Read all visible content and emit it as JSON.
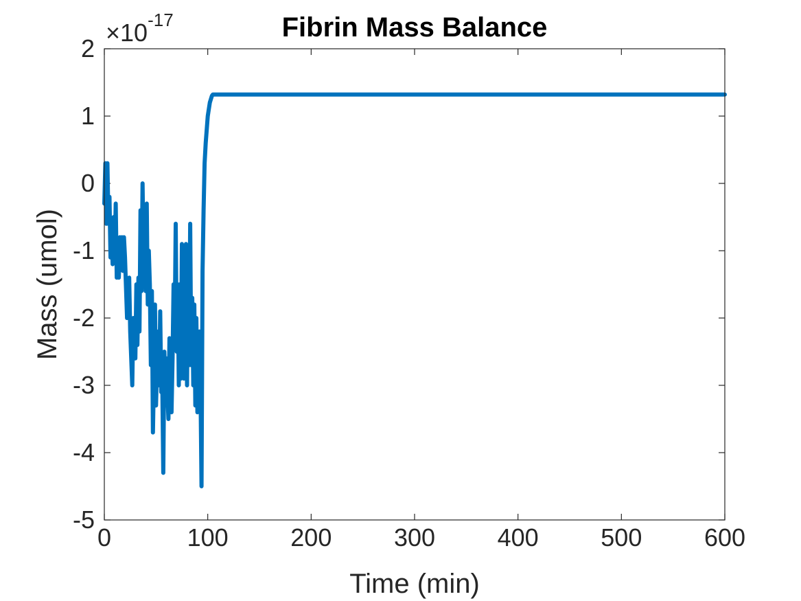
{
  "chart_data": {
    "type": "line",
    "title": "Fibrin Mass Balance",
    "xlabel": "Time (min)",
    "ylabel": "Mass (umol)",
    "exponent_label": {
      "base": "×10",
      "power": "-17"
    },
    "xlim": [
      0,
      600
    ],
    "ylim": [
      -5,
      2
    ],
    "xticks": [
      0,
      100,
      200,
      300,
      400,
      500,
      600
    ],
    "yticks": [
      -5,
      -4,
      -3,
      -2,
      -1,
      0,
      1,
      2
    ],
    "grid": false,
    "line_color": "#0072BD",
    "series": [
      {
        "x": [
          0,
          1,
          2,
          3,
          4,
          5,
          6,
          7,
          8,
          9,
          10,
          11,
          12,
          13,
          14,
          15,
          16,
          17,
          18,
          19,
          20,
          22,
          24,
          25,
          27,
          28,
          30,
          31,
          32,
          33,
          34,
          35,
          36,
          37,
          38,
          39,
          40,
          41,
          42,
          43,
          44,
          45,
          46,
          47,
          48,
          49,
          50,
          51,
          52,
          53,
          54,
          55,
          56,
          57,
          58,
          59,
          60,
          61,
          62,
          63,
          64,
          65,
          66,
          67,
          68,
          69,
          70,
          71,
          72,
          73,
          74,
          75,
          76,
          77,
          78,
          79,
          80,
          81,
          82,
          83,
          84,
          85,
          86,
          87,
          88,
          89,
          90,
          91,
          92,
          93,
          94,
          95,
          96,
          97,
          98,
          99,
          100,
          101,
          102,
          103,
          104,
          105,
          106,
          107,
          108,
          110,
          115,
          120,
          150,
          200,
          300,
          400,
          500,
          600
        ],
        "values": [
          -0.3,
          0.3,
          -0.6,
          0.3,
          -0.6,
          -0.2,
          -1.1,
          -0.7,
          -1.2,
          -0.5,
          -1.1,
          -0.3,
          -1.4,
          -0.9,
          -1.4,
          -0.8,
          -1.2,
          -0.8,
          -1.3,
          -0.8,
          -1.1,
          -2.0,
          -1.4,
          -2.2,
          -3.0,
          -2.0,
          -2.6,
          -1.5,
          -2.4,
          -1.4,
          -2.2,
          -0.4,
          -1.6,
          0.0,
          -1.2,
          -0.6,
          -1.6,
          -0.3,
          -1.8,
          -1.0,
          -1.5,
          -2.7,
          -1.6,
          -3.7,
          -2.8,
          -1.8,
          -3.3,
          -2.7,
          -2.2,
          -3.0,
          -1.9,
          -3.1,
          -2.9,
          -4.3,
          -2.5,
          -3.0,
          -2.6,
          -3.1,
          -3.5,
          -2.3,
          -3.1,
          -3.4,
          -2.6,
          -1.5,
          -2.2,
          -0.6,
          -2.5,
          -1.5,
          -3.0,
          -1.5,
          -2.9,
          -0.9,
          -2.4,
          -2.9,
          -2.2,
          -0.9,
          -3.0,
          -1.0,
          -2.7,
          -0.6,
          -2.7,
          -1.7,
          -3.0,
          -1.8,
          -3.3,
          -2.0,
          -3.4,
          -2.8,
          -2.2,
          -3.0,
          -4.5,
          -1.3,
          -0.4,
          0.3,
          0.6,
          0.8,
          1.0,
          1.1,
          1.2,
          1.25,
          1.3,
          1.32,
          1.32,
          1.32,
          1.32,
          1.32,
          1.32,
          1.32,
          1.32,
          1.32,
          1.32,
          1.32,
          1.32,
          1.32
        ]
      }
    ]
  }
}
